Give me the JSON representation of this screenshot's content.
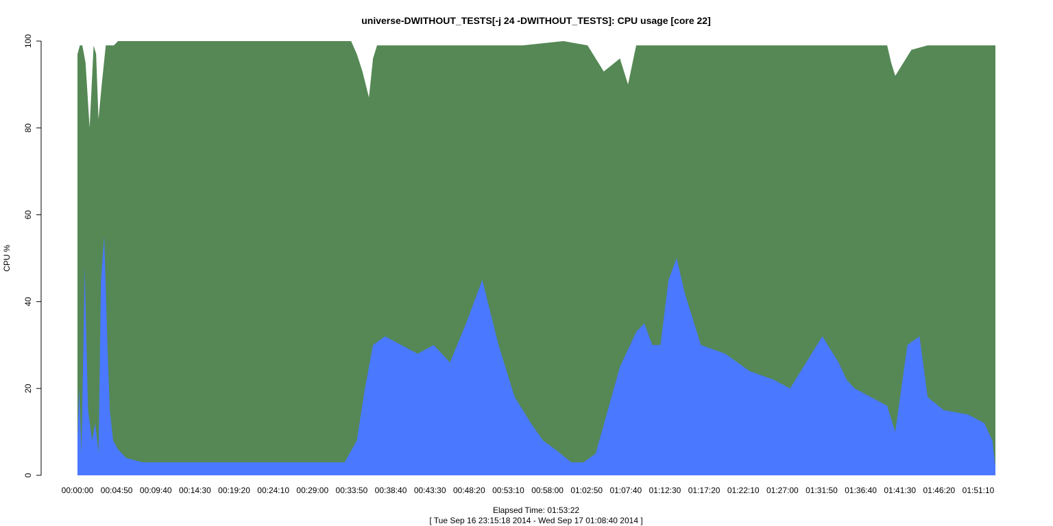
{
  "chart_data": {
    "type": "area",
    "title": "universe-DWITHOUT_TESTS[-j 24  -DWITHOUT_TESTS]: CPU usage [core 22]",
    "ylabel": "CPU %",
    "xlabel": "Elapsed Time: 01:53:22",
    "subtitle": "[ Tue Sep 16 23:15:18 2014 - Wed Sep 17 01:08:40 2014 ]",
    "ylim": [
      0,
      100
    ],
    "y_ticks": [
      "0",
      "20",
      "40",
      "60",
      "80",
      "100"
    ],
    "x_ticks": [
      "00:00:00",
      "00:04:50",
      "00:09:40",
      "00:14:30",
      "00:19:20",
      "00:24:10",
      "00:29:00",
      "00:33:50",
      "00:38:40",
      "00:43:30",
      "00:48:20",
      "00:53:10",
      "00:58:00",
      "01:02:50",
      "01:07:40",
      "01:12:30",
      "01:17:20",
      "01:22:10",
      "01:27:00",
      "01:31:50",
      "01:36:40",
      "01:41:30",
      "01:46:20",
      "01:51:10"
    ],
    "x_unit": "minutes",
    "x_max_minutes": 113.37,
    "grid": false,
    "series": [
      {
        "color": "#558855",
        "x": [
          0,
          0.3,
          0.6,
          1.0,
          1.5,
          2.0,
          2.3,
          2.6,
          3.0,
          3.5,
          4.0,
          4.5,
          5.0,
          6.0,
          8.0,
          10.0,
          12.0,
          15.0,
          20.0,
          25.0,
          30.0,
          33.8,
          34.5,
          35.2,
          36.0,
          36.5,
          37.0,
          38.0,
          40.0,
          45.0,
          50.0,
          55.0,
          60.0,
          63.0,
          64.0,
          65.0,
          67.0,
          68.0,
          69.0,
          72.0,
          77.0,
          80.0,
          85.0,
          90.0,
          95.0,
          100.0,
          100.5,
          101.0,
          103.0,
          105.0,
          110.0,
          113.37
        ],
        "values": [
          97,
          99,
          99,
          95,
          80,
          99,
          97,
          82,
          90,
          99,
          99,
          99,
          100,
          100,
          100,
          100,
          100,
          100,
          100,
          100,
          100,
          100,
          97,
          93,
          87,
          96,
          99,
          99,
          99,
          99,
          99,
          99,
          100,
          99,
          96,
          93,
          96,
          90,
          99,
          99,
          99,
          99,
          99,
          99,
          99,
          99,
          95,
          92,
          98,
          99,
          99,
          99
        ]
      },
      {
        "color": "#4a78ff",
        "x": [
          0,
          0.2,
          0.5,
          0.9,
          1.3,
          1.8,
          2.2,
          2.6,
          2.9,
          3.3,
          3.7,
          4.0,
          4.4,
          5.0,
          6.0,
          8.0,
          10.0,
          12.0,
          15.0,
          18.0,
          20.0,
          25.0,
          30.0,
          33.0,
          34.5,
          35.5,
          36.5,
          38.0,
          40.0,
          42.0,
          44.0,
          46.0,
          48.0,
          50.0,
          52.0,
          54.0,
          56.0,
          57.5,
          59.0,
          61.0,
          62.5,
          64.0,
          65.5,
          67.0,
          69.0,
          70.0,
          71.0,
          72.0,
          73.0,
          74.0,
          75.0,
          77.0,
          80.0,
          83.0,
          86.0,
          88.0,
          90.0,
          92.0,
          94.0,
          95.0,
          96.0,
          98.0,
          100.0,
          101.0,
          102.5,
          104.0,
          105.0,
          107.0,
          110.0,
          112.0,
          113.0,
          113.37
        ],
        "values": [
          8,
          20,
          5,
          48,
          15,
          8,
          12,
          5,
          45,
          55,
          30,
          15,
          8,
          6,
          4,
          3,
          3,
          3,
          3,
          3,
          3,
          3,
          3,
          3,
          8,
          20,
          30,
          32,
          30,
          28,
          30,
          26,
          35,
          45,
          30,
          18,
          12,
          8,
          6,
          3,
          3,
          5,
          15,
          25,
          33,
          35,
          30,
          30,
          45,
          50,
          42,
          30,
          28,
          24,
          22,
          20,
          26,
          32,
          26,
          22,
          20,
          18,
          16,
          10,
          30,
          32,
          18,
          15,
          14,
          12,
          8,
          2
        ]
      }
    ]
  }
}
